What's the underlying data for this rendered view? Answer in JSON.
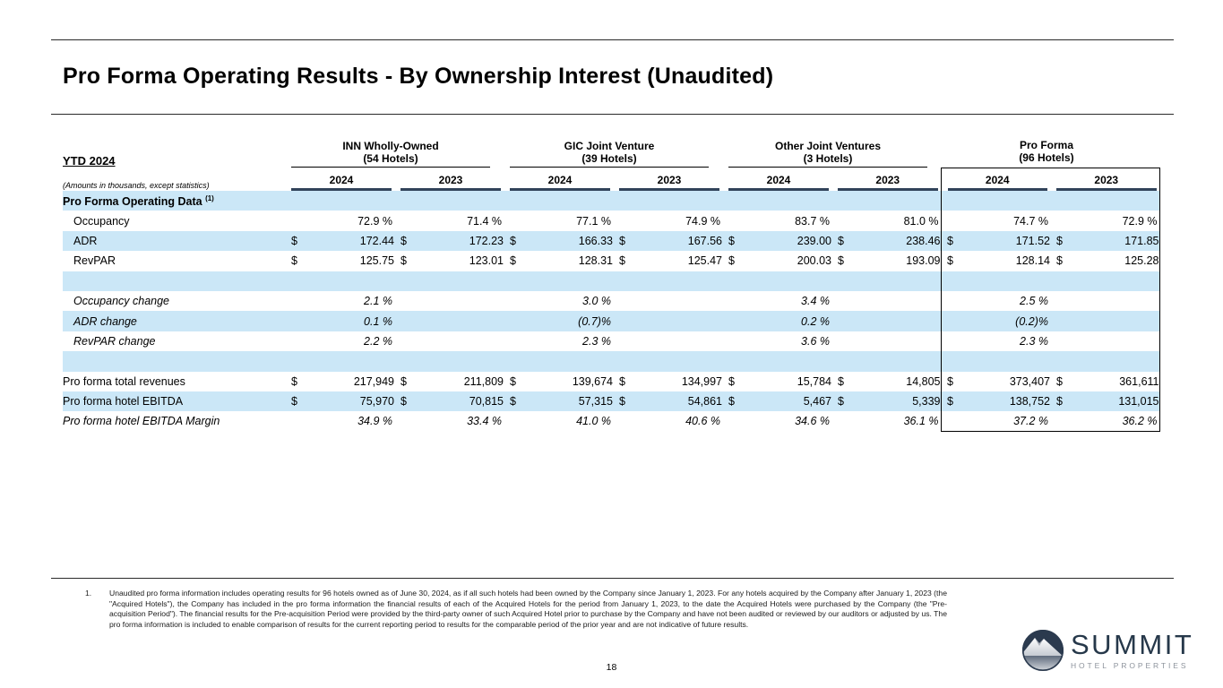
{
  "title": "Pro Forma Operating Results - By Ownership Interest (Unaudited)",
  "page": {
    "number": "18"
  },
  "table": {
    "corner_label": "YTD 2024",
    "units_note": "(Amounts in thousands, except statistics)",
    "groups": [
      {
        "name": "INN Wholly-Owned",
        "subtitle": "(54 Hotels)",
        "years": [
          "2024",
          "2023"
        ],
        "boxed": false
      },
      {
        "name": "GIC Joint Venture",
        "subtitle": "(39 Hotels)",
        "years": [
          "2024",
          "2023"
        ],
        "boxed": false
      },
      {
        "name": "Other Joint Ventures",
        "subtitle": "(3 Hotels)",
        "years": [
          "2024",
          "2023"
        ],
        "boxed": false
      },
      {
        "name": "Pro Forma",
        "subtitle": "(96 Hotels)",
        "years": [
          "2024",
          "2023"
        ],
        "boxed": true
      }
    ],
    "rows": [
      {
        "type": "section",
        "label": "Pro Forma Operating Data",
        "sup": "(1)",
        "bg": "blue"
      },
      {
        "type": "data",
        "label": "Occupancy",
        "indent": true,
        "italic": false,
        "prefix": "",
        "pct": true,
        "bg": "white",
        "values": [
          "72.9 %",
          "71.4 %",
          "77.1 %",
          "74.9 %",
          "83.7 %",
          "81.0 %",
          "74.7 %",
          "72.9 %"
        ]
      },
      {
        "type": "data",
        "label": "ADR",
        "indent": true,
        "italic": false,
        "prefix": "$",
        "pct": false,
        "bg": "blue",
        "values": [
          "172.44",
          "172.23",
          "166.33",
          "167.56",
          "239.00",
          "238.46",
          "171.52",
          "171.85"
        ]
      },
      {
        "type": "data",
        "label": "RevPAR",
        "indent": true,
        "italic": false,
        "prefix": "$",
        "pct": false,
        "bg": "white",
        "values": [
          "125.75",
          "123.01",
          "128.31",
          "125.47",
          "200.03",
          "193.09",
          "128.14",
          "125.28"
        ]
      },
      {
        "type": "blank",
        "bg": "blue"
      },
      {
        "type": "data",
        "label": "Occupancy change",
        "indent": true,
        "italic": true,
        "prefix": "",
        "pct": true,
        "bg": "white",
        "values": [
          "2.1 %",
          "",
          "3.0 %",
          "",
          "3.4 %",
          "",
          "2.5 %",
          ""
        ]
      },
      {
        "type": "data",
        "label": "ADR change",
        "indent": true,
        "italic": true,
        "prefix": "",
        "pct": true,
        "bg": "blue",
        "values": [
          "0.1 %",
          "",
          "(0.7)%",
          "",
          "0.2 %",
          "",
          "(0.2)%",
          ""
        ]
      },
      {
        "type": "data",
        "label": "RevPAR change",
        "indent": true,
        "italic": true,
        "prefix": "",
        "pct": true,
        "bg": "white",
        "values": [
          "2.2 %",
          "",
          "2.3 %",
          "",
          "3.6 %",
          "",
          "2.3 %",
          ""
        ]
      },
      {
        "type": "blank",
        "bg": "blue"
      },
      {
        "type": "data",
        "label": "Pro forma total revenues",
        "indent": false,
        "italic": false,
        "prefix": "$",
        "pct": false,
        "bg": "white",
        "values": [
          "217,949",
          "211,809",
          "139,674",
          "134,997",
          "15,784",
          "14,805",
          "373,407",
          "361,611"
        ]
      },
      {
        "type": "data",
        "label": "Pro forma hotel EBITDA",
        "indent": false,
        "italic": false,
        "prefix": "$",
        "pct": false,
        "bg": "blue",
        "values": [
          "75,970",
          "70,815",
          "57,315",
          "54,861",
          "5,467",
          "5,339",
          "138,752",
          "131,015"
        ]
      },
      {
        "type": "data",
        "label": "Pro forma hotel EBITDA Margin",
        "indent": false,
        "italic": true,
        "prefix": "",
        "pct": true,
        "bg": "white",
        "values": [
          "34.9 %",
          "33.4 %",
          "41.0 %",
          "40.6 %",
          "34.6 %",
          "36.1 %",
          "37.2 %",
          "36.2 %"
        ]
      }
    ]
  },
  "footnote": {
    "number": "1.",
    "text": "Unaudited pro forma information includes operating results for 96 hotels owned as of June 30, 2024, as if all such hotels had been owned by the Company since January 1, 2023. For any hotels acquired by the Company after January 1, 2023 (the \"Acquired Hotels\"), the Company has included in the pro forma information the financial results of each of the Acquired Hotels for the period from January 1, 2023, to the date the Acquired Hotels were purchased by the Company (the \"Pre-acquisition Period\"). The financial results for the Pre-acquisition Period were provided by the third-party owner of such Acquired Hotel prior to purchase by the Company and have not been audited or reviewed by our auditors or adjusted by us. The pro forma information is included to enable comparison of results for the current reporting period to results for the comparable period of the prior year and are not indicative of future results."
  },
  "logo": {
    "name": "SUMMIT",
    "tagline": "HOTEL PROPERTIES"
  },
  "colors": {
    "row_blue": "#cbe7f7",
    "year_rule": "#31435a",
    "logo_navy": "#26384a",
    "logo_gray": "#8d939c"
  }
}
